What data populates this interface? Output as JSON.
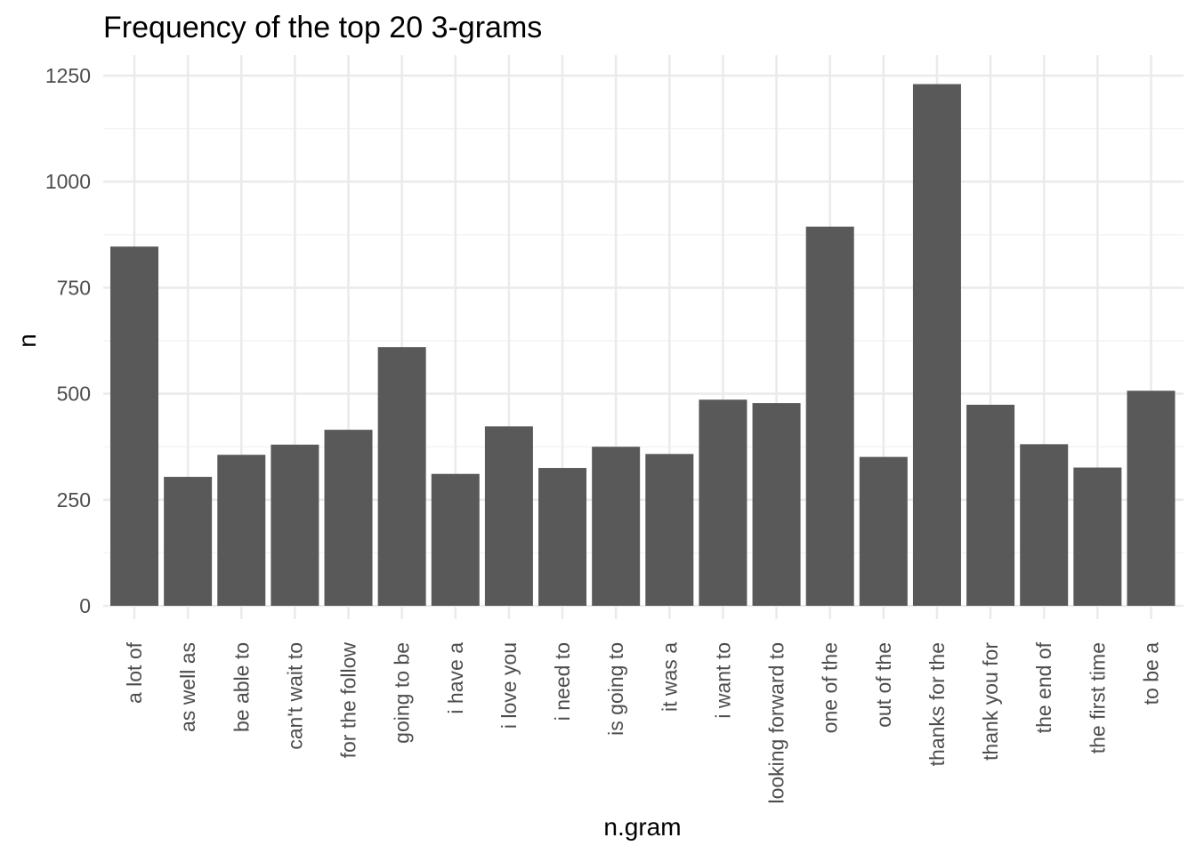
{
  "chart_data": {
    "type": "bar",
    "title": "Frequency of the top 20 3-grams",
    "xlabel": "n.gram",
    "ylabel": "n",
    "categories": [
      "a lot of",
      "as well as",
      "be able to",
      "can't wait to",
      "for the follow",
      "going to be",
      "i have a",
      "i love you",
      "i need to",
      "is going to",
      "it was a",
      "i want to",
      "looking forward to",
      "one of the",
      "out of the",
      "thanks for the",
      "thank you for",
      "the end of",
      "the first time",
      "to be a"
    ],
    "values": [
      847,
      304,
      356,
      380,
      415,
      610,
      311,
      423,
      325,
      375,
      358,
      486,
      478,
      894,
      351,
      1230,
      474,
      381,
      326,
      507
    ],
    "ylim": [
      0,
      1250
    ],
    "yticks": [
      0,
      250,
      500,
      750,
      1000,
      1250
    ],
    "ytick_labels": [
      "0",
      "250",
      "500",
      "750",
      "1000",
      "1250"
    ],
    "grid": true,
    "bar_color": "#595959",
    "grid_color": "#ebebeb"
  }
}
